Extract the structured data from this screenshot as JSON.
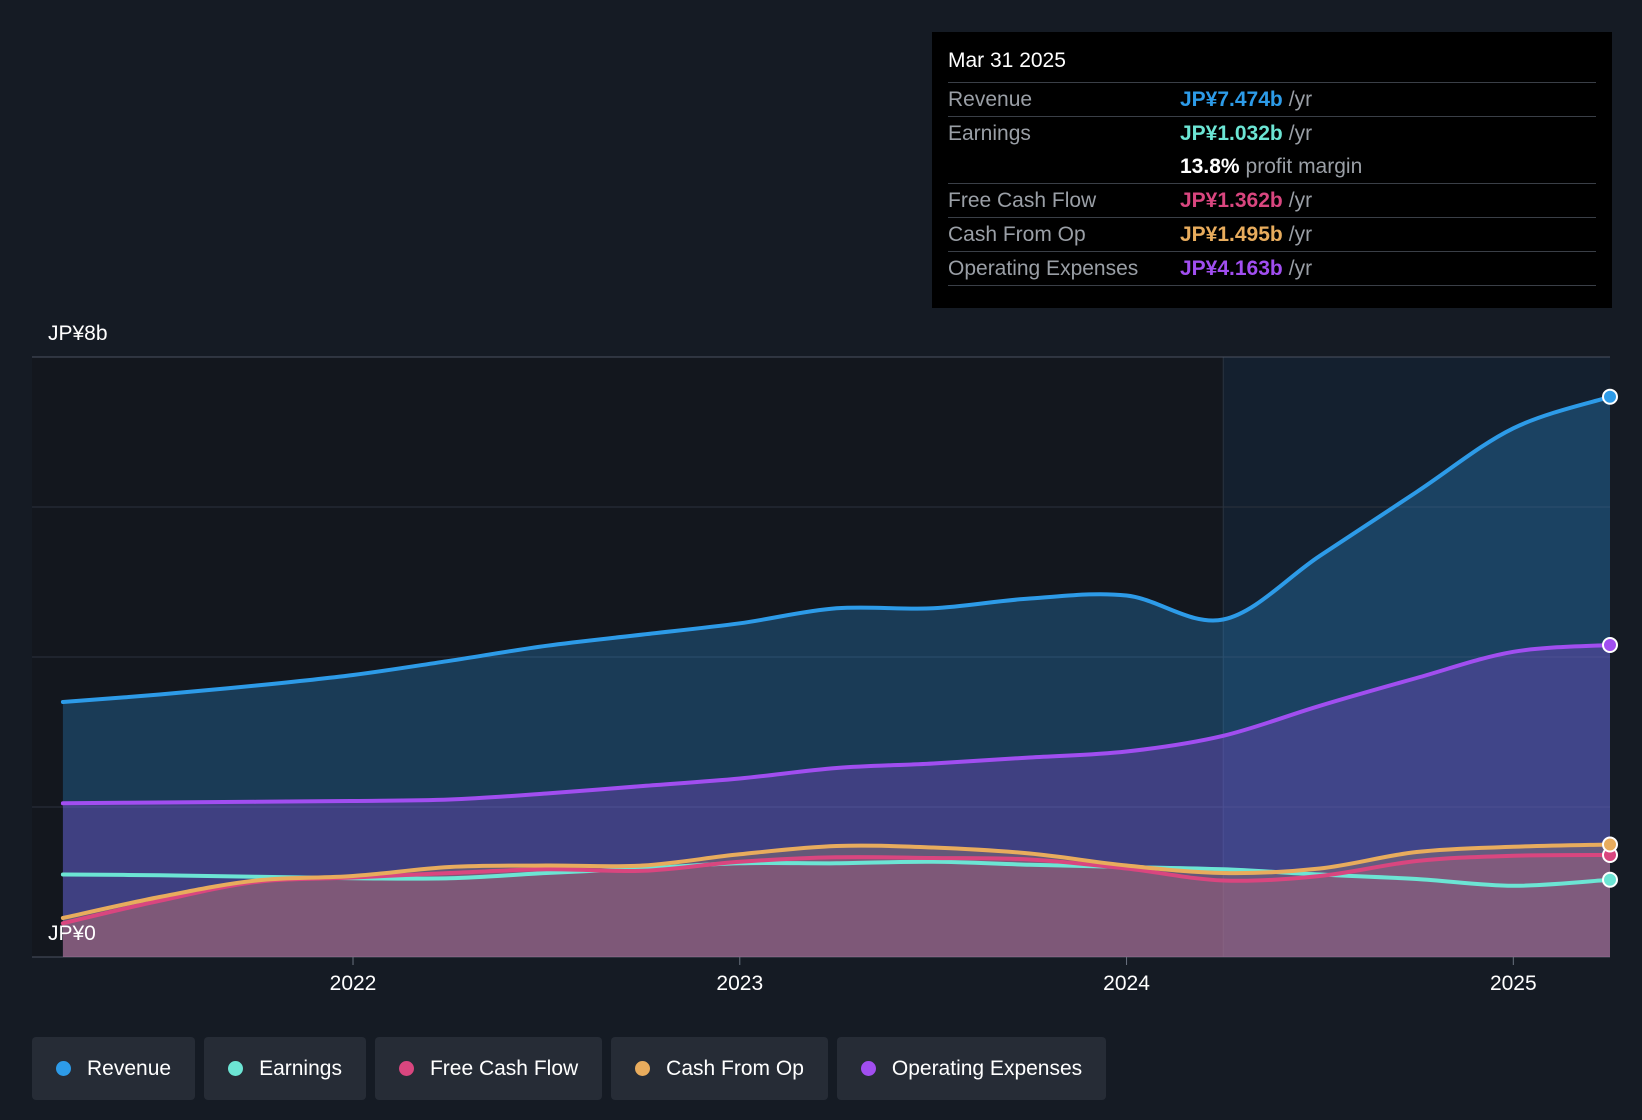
{
  "tooltip": {
    "date": "Mar 31 2025",
    "rows": [
      {
        "label": "Revenue",
        "value": "JP¥7.474b",
        "unit": "/yr",
        "color": "#2d9be8"
      },
      {
        "label": "Earnings",
        "value": "JP¥1.032b",
        "unit": "/yr",
        "color": "#6ce5d4"
      },
      {
        "label": "Free Cash Flow",
        "value": "JP¥1.362b",
        "unit": "/yr",
        "color": "#d9467f"
      },
      {
        "label": "Cash From Op",
        "value": "JP¥1.495b",
        "unit": "/yr",
        "color": "#e8ac5d"
      },
      {
        "label": "Operating Expenses",
        "value": "JP¥4.163b",
        "unit": "/yr",
        "color": "#a14ef0"
      }
    ],
    "profit_margin": {
      "value": "13.8%",
      "label": "profit margin"
    }
  },
  "legend": [
    {
      "label": "Revenue",
      "color": "#2d9be8"
    },
    {
      "label": "Earnings",
      "color": "#6ce5d4"
    },
    {
      "label": "Free Cash Flow",
      "color": "#d9467f"
    },
    {
      "label": "Cash From Op",
      "color": "#e8ac5d"
    },
    {
      "label": "Operating Expenses",
      "color": "#a14ef0"
    }
  ],
  "chart_data": {
    "type": "area",
    "ylabel_top": "JP¥8b",
    "ylabel_bottom": "JP¥0",
    "ylim": [
      0,
      8
    ],
    "xlim": [
      2021.17,
      2025.25
    ],
    "past_data_start": 2024.25,
    "x_ticks": [
      {
        "value": 2022,
        "label": "2022"
      },
      {
        "value": 2023,
        "label": "2023"
      },
      {
        "value": 2024,
        "label": "2024"
      },
      {
        "value": 2025,
        "label": "2025"
      }
    ],
    "y_gridlines": [
      0,
      2,
      4,
      6,
      8
    ],
    "x": [
      2021.25,
      2021.5,
      2021.75,
      2022.0,
      2022.25,
      2022.5,
      2022.75,
      2023.0,
      2023.25,
      2023.5,
      2023.75,
      2024.0,
      2024.25,
      2024.5,
      2024.75,
      2025.0,
      2025.25
    ],
    "series": [
      {
        "name": "Revenue",
        "color": "#2d9be8",
        "fill_opacity": 0.28,
        "values": [
          3.4,
          3.5,
          3.62,
          3.76,
          3.95,
          4.15,
          4.3,
          4.45,
          4.65,
          4.65,
          4.78,
          4.82,
          4.5,
          5.35,
          6.2,
          7.05,
          7.47
        ]
      },
      {
        "name": "Operating Expenses",
        "color": "#a14ef0",
        "fill_opacity": 0.28,
        "values": [
          2.05,
          2.06,
          2.07,
          2.08,
          2.1,
          2.18,
          2.28,
          2.38,
          2.52,
          2.58,
          2.66,
          2.74,
          2.95,
          3.35,
          3.72,
          4.07,
          4.16
        ]
      },
      {
        "name": "Earnings",
        "color": "#6ce5d4",
        "fill_opacity": 0.0,
        "values": [
          1.1,
          1.09,
          1.07,
          1.05,
          1.05,
          1.12,
          1.18,
          1.25,
          1.25,
          1.27,
          1.23,
          1.2,
          1.17,
          1.1,
          1.04,
          0.95,
          1.03
        ]
      },
      {
        "name": "Free Cash Flow",
        "color": "#d9467f",
        "fill_opacity": 0.22,
        "values": [
          0.45,
          0.75,
          1.0,
          1.06,
          1.12,
          1.17,
          1.15,
          1.27,
          1.33,
          1.32,
          1.3,
          1.18,
          1.02,
          1.08,
          1.28,
          1.35,
          1.36
        ]
      },
      {
        "name": "Cash From Op",
        "color": "#e8ac5d",
        "fill_opacity": 0.22,
        "values": [
          0.52,
          0.8,
          1.02,
          1.08,
          1.2,
          1.22,
          1.22,
          1.37,
          1.48,
          1.46,
          1.38,
          1.22,
          1.12,
          1.18,
          1.4,
          1.47,
          1.5
        ]
      }
    ]
  }
}
